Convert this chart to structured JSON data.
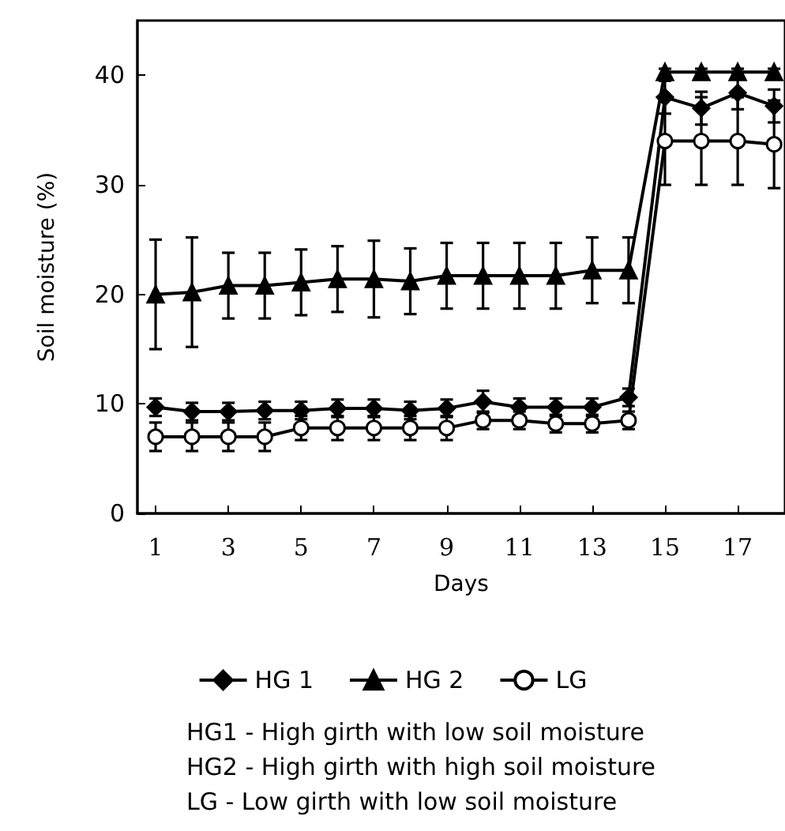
{
  "chart_data": {
    "type": "line",
    "xlabel": "Days",
    "ylabel": "Soil moisture (%)",
    "x": [
      1,
      2,
      3,
      4,
      5,
      6,
      7,
      8,
      9,
      10,
      11,
      12,
      13,
      14,
      15,
      16,
      17,
      18
    ],
    "xlim": [
      0.5,
      18.3
    ],
    "xticks": [
      1,
      3,
      5,
      7,
      9,
      11,
      13,
      15,
      17
    ],
    "ylim": [
      0,
      45
    ],
    "yticks": [
      0,
      10,
      20,
      30,
      40
    ],
    "grid": false,
    "legend": "bottom",
    "series": [
      {
        "name": "HG 1",
        "color": "#000000",
        "marker": "diamond",
        "values": [
          9.7,
          9.3,
          9.3,
          9.4,
          9.4,
          9.6,
          9.6,
          9.4,
          9.6,
          10.2,
          9.7,
          9.7,
          9.7,
          10.6,
          38,
          37,
          38.4,
          37.2
        ],
        "errors": [
          0.8,
          0.8,
          0.8,
          0.8,
          0.8,
          0.8,
          0.8,
          0.8,
          0.8,
          1,
          0.8,
          0.8,
          0.8,
          0.8,
          1.5,
          1.5,
          1.5,
          1.5
        ]
      },
      {
        "name": "HG 2",
        "color": "#000000",
        "marker": "triangle",
        "values": [
          20,
          20.2,
          20.8,
          20.8,
          21.1,
          21.4,
          21.4,
          21.2,
          21.7,
          21.7,
          21.7,
          21.7,
          22.2,
          22.2,
          40.3,
          40.3,
          40.3,
          40.3
        ],
        "errors": [
          5,
          5,
          3,
          3,
          3,
          3,
          3.5,
          3,
          3,
          3,
          3,
          3,
          3,
          3,
          0.3,
          0.3,
          0.3,
          0.3
        ]
      },
      {
        "name": "LG",
        "color": "#000000",
        "marker": "circle",
        "values": [
          7,
          7,
          7,
          7,
          7.8,
          7.8,
          7.8,
          7.8,
          7.8,
          8.5,
          8.5,
          8.2,
          8.2,
          8.5,
          34,
          34,
          34,
          33.7
        ],
        "errors": [
          1.3,
          1.3,
          1.3,
          1.3,
          1.1,
          1.1,
          1.1,
          1.1,
          1.1,
          0.8,
          0.8,
          0.8,
          0.8,
          0.8,
          4,
          4,
          4,
          4
        ]
      }
    ],
    "annotations": [
      "HG1 - High girth with low soil moisture",
      "HG2 - High girth with high soil moisture",
      "LG - Low girth with low soil moisture"
    ]
  }
}
